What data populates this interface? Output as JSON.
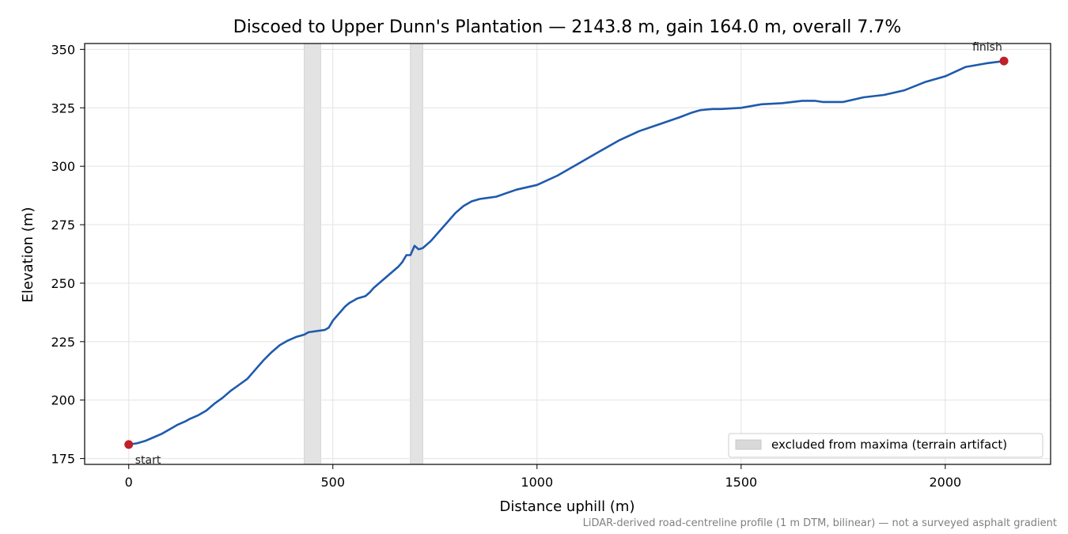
{
  "chart_data": {
    "type": "line",
    "title": "Discoed to Upper Dunn's Plantation — 2143.8 m, gain 164.0 m, overall 7.7%",
    "xlabel": "Distance uphill (m)",
    "ylabel": "Elevation (m)",
    "xlim": [
      -108,
      2258
    ],
    "ylim": [
      172.5,
      352.5
    ],
    "xticks": [
      0,
      500,
      1000,
      1500,
      2000
    ],
    "yticks": [
      175,
      200,
      225,
      250,
      275,
      300,
      325,
      350
    ],
    "grid": true,
    "colors": {
      "line": "#1f5aad",
      "marker": "#c0202a",
      "band_fill": "#d9d9d9"
    },
    "series": [
      {
        "x": [
          0,
          20,
          40,
          60,
          80,
          100,
          120,
          140,
          150,
          170,
          190,
          210,
          230,
          250,
          270,
          290,
          300,
          310,
          330,
          350,
          370,
          390,
          410,
          430,
          440,
          460,
          480,
          490,
          500,
          510,
          520,
          530,
          540,
          560,
          570,
          580,
          590,
          600,
          620,
          640,
          660,
          670,
          680,
          690,
          700,
          710,
          720,
          740,
          760,
          780,
          800,
          820,
          840,
          860,
          880,
          900,
          950,
          1000,
          1050,
          1100,
          1150,
          1200,
          1250,
          1300,
          1350,
          1380,
          1400,
          1430,
          1450,
          1500,
          1550,
          1600,
          1650,
          1680,
          1700,
          1750,
          1800,
          1850,
          1900,
          1950,
          2000,
          2050,
          2100,
          2143.8
        ],
        "y": [
          181,
          181.5,
          182.5,
          184,
          185.5,
          187.5,
          189.5,
          191,
          192,
          193.5,
          195.5,
          198.5,
          201,
          204,
          206.5,
          209,
          211,
          213,
          217,
          220.5,
          223.5,
          225.5,
          227,
          228,
          229,
          229.5,
          230,
          231,
          234,
          236,
          238,
          240,
          241.5,
          243.5,
          244,
          244.5,
          246,
          248,
          251,
          254,
          257,
          259,
          262,
          262,
          266,
          264.5,
          265,
          268,
          272,
          276,
          280,
          283,
          285,
          286,
          286.5,
          287,
          290,
          292,
          296,
          301,
          306,
          311,
          315,
          318,
          321,
          323,
          324,
          324.5,
          324.5,
          325,
          326.5,
          327,
          328,
          328,
          327.5,
          327.5,
          329.5,
          330.5,
          332.5,
          336,
          338.5,
          342.5,
          344,
          345
        ]
      }
    ],
    "excluded_regions": [
      [
        430,
        470
      ],
      [
        690,
        720
      ]
    ],
    "legend": {
      "placement": "lower-right",
      "entries": [
        "excluded from maxima (terrain artifact)"
      ]
    },
    "annotations": [
      {
        "label": "start",
        "x": 0,
        "y": 181
      },
      {
        "label": "finish",
        "x": 2143.8,
        "y": 345
      }
    ],
    "footnote": "LiDAR-derived road-centreline profile (1 m DTM, bilinear) — not a surveyed asphalt gradient"
  }
}
